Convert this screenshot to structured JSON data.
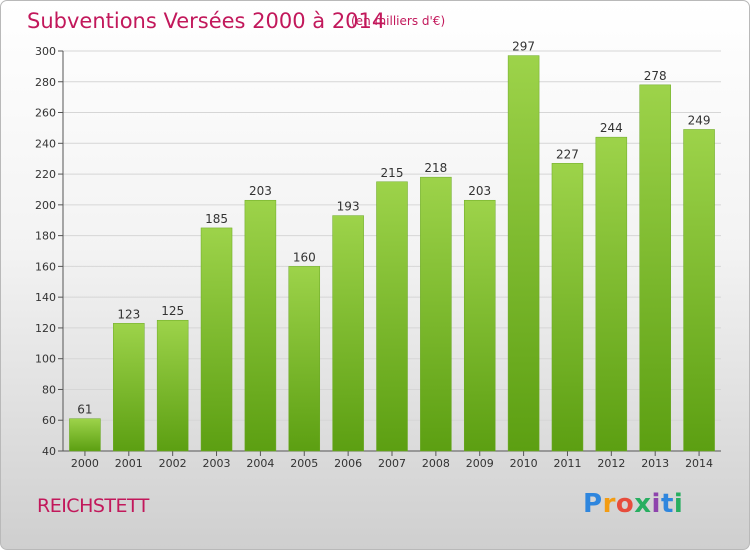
{
  "chart_data": {
    "type": "bar",
    "title": "Subventions Versées 2000 à 2014",
    "subtitle": "(en milliers d'€)",
    "categories": [
      "2000",
      "2001",
      "2002",
      "2003",
      "2004",
      "2005",
      "2006",
      "2007",
      "2008",
      "2009",
      "2010",
      "2011",
      "2012",
      "2013",
      "2014"
    ],
    "values": [
      61,
      123,
      125,
      185,
      203,
      160,
      193,
      215,
      218,
      203,
      297,
      227,
      244,
      278,
      249
    ],
    "ylim": [
      40,
      300
    ],
    "yticks": [
      40,
      60,
      80,
      100,
      120,
      140,
      160,
      180,
      200,
      220,
      240,
      260,
      280,
      300
    ],
    "grid": true,
    "bar_color_top": "#9dd34a",
    "bar_color_bottom": "#5c9f12"
  },
  "commune": "REICHSTETT",
  "brand": {
    "letters": [
      "P",
      "r",
      "o",
      "x",
      "i",
      "t",
      "i"
    ],
    "colors": [
      "#2e86de",
      "#f39c12",
      "#e74c3c",
      "#27ae60",
      "#8e44ad",
      "#2e86de",
      "#27ae60"
    ]
  }
}
